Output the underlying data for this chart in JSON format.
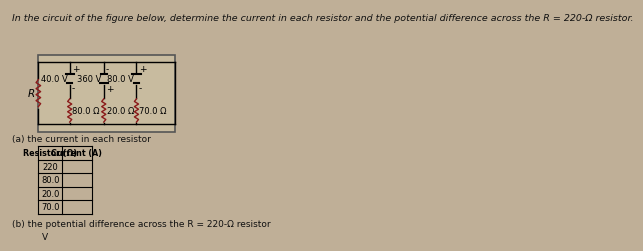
{
  "title": "In the circuit of the figure below, determine the current in each resistor and the potential difference across the R = 220-Ω resistor.",
  "bg_color": "#bfaf97",
  "box_facecolor": "#c8bb9f",
  "text_color": "#111111",
  "font_size_title": 6.8,
  "font_size_body": 6.5,
  "font_size_small": 6.0,
  "table_title": "(a) the current in each resistor",
  "table_headers": [
    "Resistor (Ω)",
    "Current (A)"
  ],
  "table_rows": [
    [
      "220",
      ""
    ],
    [
      "80.0",
      ""
    ],
    [
      "20.0",
      ""
    ],
    [
      "70.0",
      ""
    ]
  ],
  "part_b": "(b) the potential difference across the R = 220-Ω resistor",
  "part_b_answer": "V",
  "bat_labels": [
    "40.0 V",
    "360 V",
    "80.0 V"
  ],
  "bat_polarities_top": [
    "+",
    "-",
    "+"
  ],
  "bat_polarities_bot": [
    "-",
    "+",
    "-"
  ],
  "res_labels_bottom": [
    "80.0 Ω",
    "20.0 Ω",
    "70.0 Ω"
  ],
  "res_label_left": "R"
}
